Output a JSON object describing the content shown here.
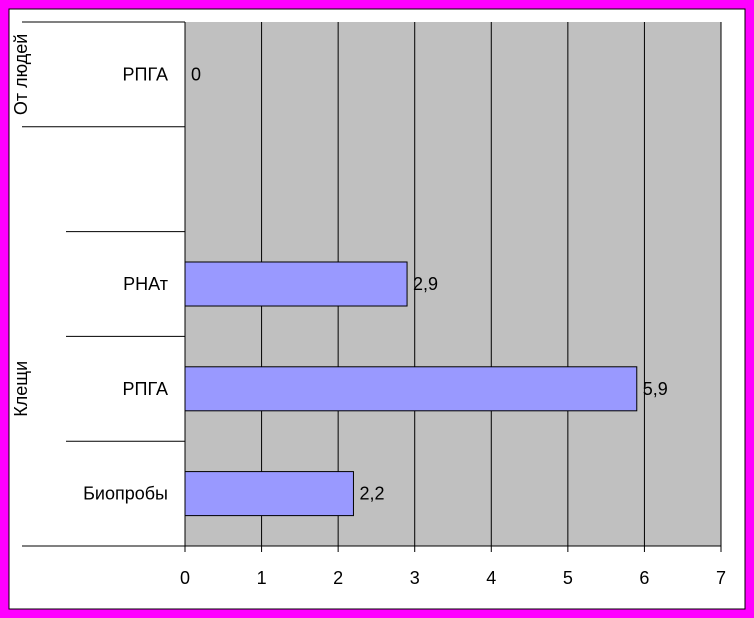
{
  "chart_data": {
    "type": "bar",
    "orientation": "horizontal",
    "groups": [
      {
        "label": "От людей",
        "categories": [
          "РПГА"
        ],
        "values": [
          0
        ],
        "data_labels": [
          "0"
        ]
      },
      {
        "label": "Клещи",
        "categories": [
          "РНАт",
          "РПГА",
          "Биопробы"
        ],
        "values": [
          2.9,
          5.9,
          2.2
        ],
        "data_labels": [
          "2,9",
          "5,9",
          "2,2"
        ]
      }
    ],
    "xlim": [
      0,
      7
    ],
    "x_ticks": [
      "0",
      "1",
      "2",
      "3",
      "4",
      "5",
      "6",
      "7"
    ],
    "grid": "vertical",
    "legend": "none",
    "colors": {
      "border": "#ff00ff",
      "plot_background": "#c0c0c0",
      "bar_fill": "#9999ff",
      "bar_stroke": "#000000",
      "grid": "#000000"
    }
  }
}
